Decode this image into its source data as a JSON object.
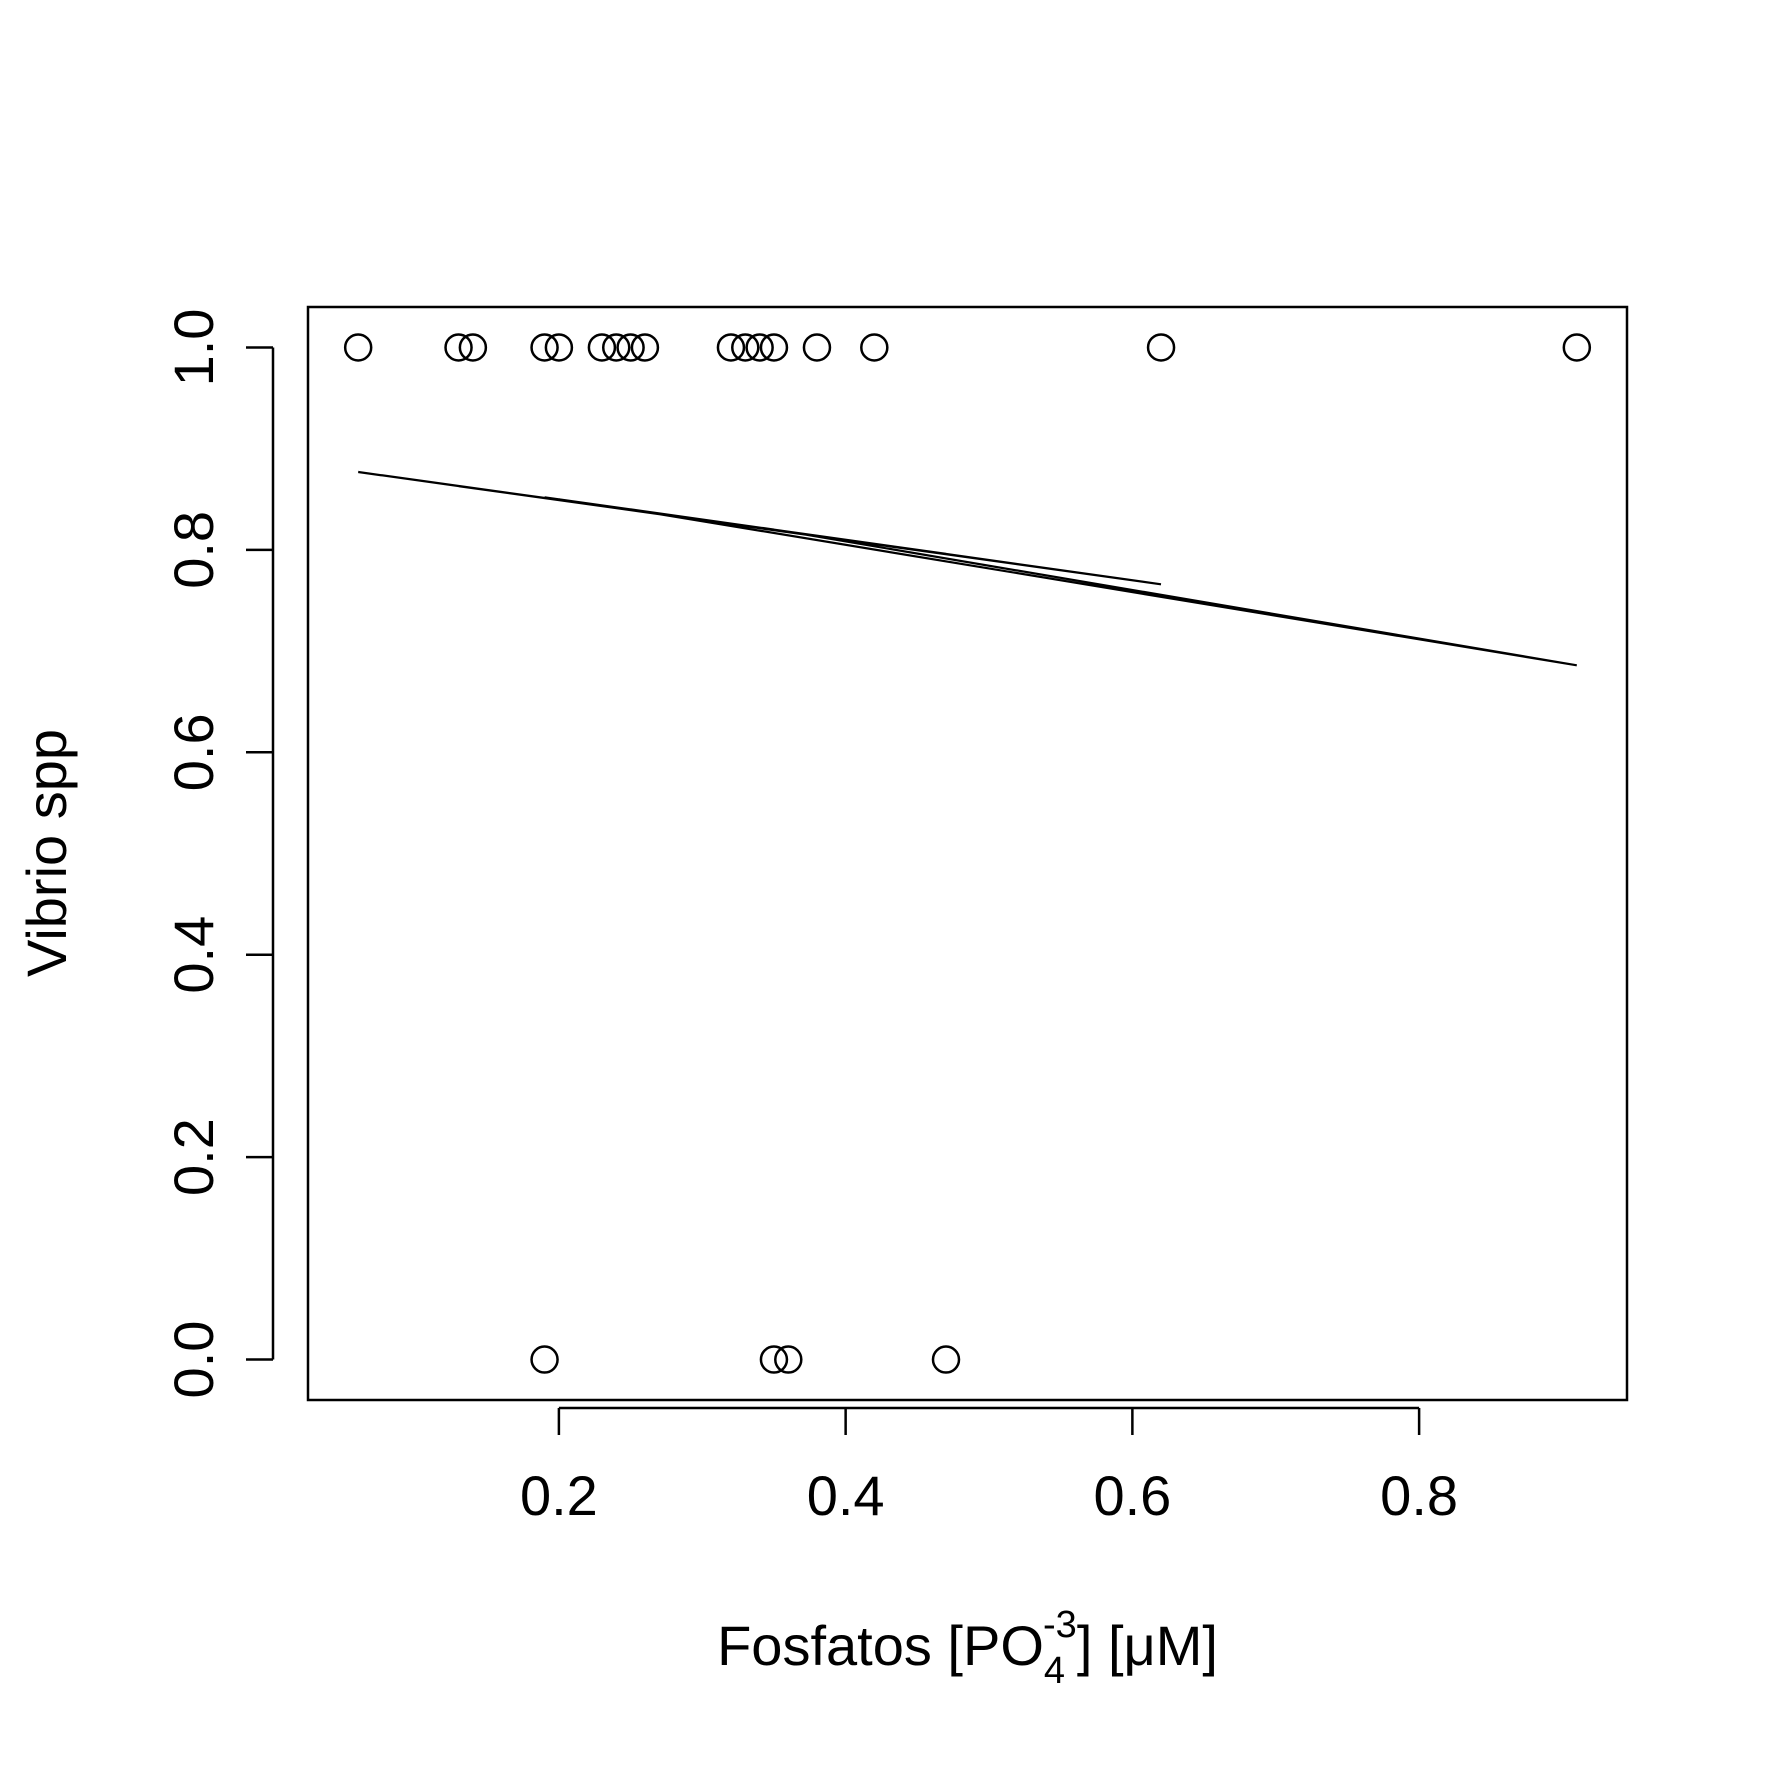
{
  "chart_data": {
    "type": "scatter",
    "title": "",
    "xlabel": "Fosfatos [PO",
    "xlabel_sub": "4",
    "xlabel_sup": "-3",
    "xlabel_tail": "] [μM]",
    "ylabel": "Vibrio spp",
    "xlim": [
      0.025,
      0.945
    ],
    "ylim": [
      -0.04,
      1.04
    ],
    "xticks": [
      0.2,
      0.4,
      0.6,
      0.8
    ],
    "xtick_labels": [
      "0.2",
      "0.4",
      "0.6",
      "0.8"
    ],
    "yticks": [
      0.0,
      0.2,
      0.4,
      0.6,
      0.8,
      1.0
    ],
    "ytick_labels": [
      "0.0",
      "0.2",
      "0.4",
      "0.6",
      "0.8",
      "1.0"
    ],
    "grid": false,
    "points": {
      "x": [
        0.06,
        0.13,
        0.14,
        0.19,
        0.2,
        0.23,
        0.24,
        0.25,
        0.26,
        0.32,
        0.33,
        0.34,
        0.35,
        0.38,
        0.42,
        0.62,
        0.91,
        0.19,
        0.35,
        0.36,
        0.47
      ],
      "y": [
        1,
        1,
        1,
        1,
        1,
        1,
        1,
        1,
        1,
        1,
        1,
        1,
        1,
        1,
        1,
        1,
        1,
        0,
        0,
        0,
        0
      ]
    },
    "fitted_line": {
      "x": [
        0.06,
        0.62,
        0.19,
        0.35,
        0.13,
        0.42,
        0.25,
        0.91,
        0.36,
        0.2,
        0.47,
        0.38,
        0.06
      ],
      "y": [
        0.877,
        0.766,
        0.852,
        0.82,
        0.863,
        0.806,
        0.84,
        0.686,
        0.818,
        0.85,
        0.796,
        0.814,
        0.877
      ]
    }
  }
}
